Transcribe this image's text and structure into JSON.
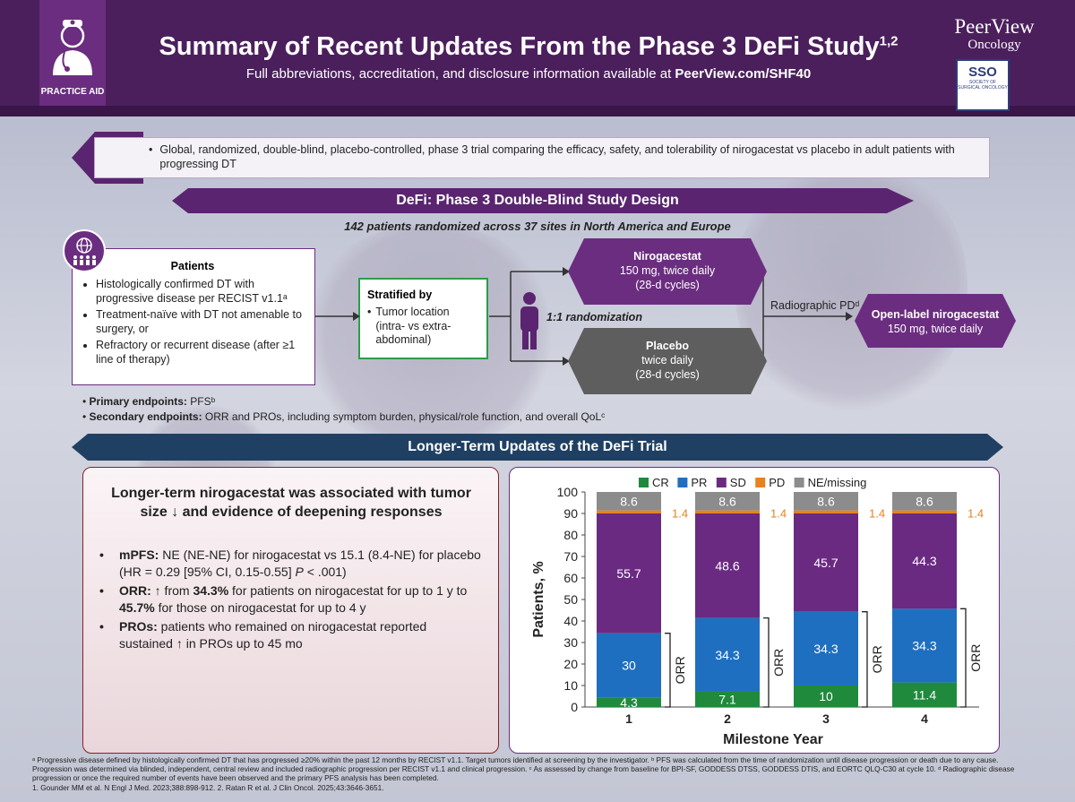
{
  "header": {
    "badge": "PRACTICE AID",
    "title": "Summary of Recent Updates From the Phase 3 DeFi Study",
    "title_sup": "1,2",
    "subtitle_pre": "Full abbreviations, accreditation, and disclosure information available at ",
    "subtitle_link": "PeerView.com/SHF40",
    "brand1": "PeerView",
    "brand2": "Oncology",
    "sso_big": "SSO",
    "sso_small": "SOCIETY OF SURGICAL ONCOLOGY"
  },
  "intro": "Global, randomized, double-blind, placebo-controlled, phase 3 trial comparing the efficacy, safety, and tolerability of nirogacestat vs placebo in adult patients with progressing DT",
  "design": {
    "title": "DeFi: Phase 3 Double-Blind Study Design",
    "randomized": "142 patients randomized across 37 sites in North America and Europe",
    "patients_title": "Patients",
    "patients_items": [
      "Histologically confirmed DT with progressive disease per RECIST v1.1ᵃ",
      "Treatment-naïve with DT not amenable to surgery, or",
      "Refractory or recurrent disease (after ≥1 line of therapy)"
    ],
    "strat_title": "Stratified by",
    "strat_item": "Tumor location (intra- vs extra-abdominal)",
    "randomization": "1:1 randomization",
    "niro_name": "Nirogacestat",
    "niro_dose": "150 mg, twice daily",
    "niro_cycle": "(28-d cycles)",
    "placebo_name": "Placebo",
    "placebo_dose": "twice daily",
    "placebo_cycle": "(28-d cycles)",
    "pd_label": "Radiographic PDᵈ",
    "ol_name": "Open-label nirogacestat",
    "ol_dose": "150 mg, twice daily",
    "primary_label": "Primary endpoints:",
    "primary_value": " PFSᵇ",
    "secondary_label": "Secondary endpoints:",
    "secondary_value": " ORR and PROs, including symptom burden, physical/role function, and overall QoLᶜ"
  },
  "updates": {
    "title": "Longer-Term Updates of the DeFi Trial",
    "headline": "Longer-term nirogacestat was associated with tumor size ↓ and evidence of deepening responses",
    "b1_label": "mPFS:",
    "b1_text": " NE (NE-NE) for nirogacestat vs 15.1 (8.4-NE) for placebo (HR = 0.29 [95% CI, 0.15-0.55] ",
    "b1_p": "P",
    "b1_end": " < .001)",
    "b2_label": "ORR:",
    "b2_a": " ↑ from ",
    "b2_v1": "34.3%",
    "b2_b": " for patients on nirogacestat for up to 1 y to ",
    "b2_v2": "45.7%",
    "b2_c": " for those on nirogacestat for up to 4 y",
    "b3_label": "PROs:",
    "b3_text": " patients who remained on nirogacestat reported sustained ↑ in PROs up to 45 mo"
  },
  "chart_data": {
    "type": "bar",
    "stacked": true,
    "categories": [
      "1",
      "2",
      "3",
      "4"
    ],
    "series": [
      {
        "name": "CR",
        "color": "#1f8a3c",
        "values": [
          4.3,
          7.1,
          10,
          11.4
        ]
      },
      {
        "name": "PR",
        "color": "#1f6fc0",
        "values": [
          30,
          34.3,
          34.3,
          34.3
        ]
      },
      {
        "name": "SD",
        "color": "#6a2a82",
        "values": [
          55.7,
          48.6,
          45.7,
          44.3
        ]
      },
      {
        "name": "PD",
        "color": "#e8821e",
        "values": [
          1.4,
          1.4,
          1.4,
          1.4
        ]
      },
      {
        "name": "NE/missing",
        "color": "#8c8c8c",
        "values": [
          8.6,
          8.6,
          8.6,
          8.6
        ]
      }
    ],
    "xlabel": "Milestone Year",
    "ylabel": "Patients, %",
    "ylim": [
      0,
      100
    ],
    "yticks": [
      "0",
      "10",
      "20",
      "30",
      "40",
      "50",
      "60",
      "70",
      "80",
      "90",
      "100"
    ],
    "bracket_label": "ORR"
  },
  "footnotes": [
    "ᵃ Progressive disease defined by histologically confirmed DT that has progressed ≥20% within the past 12 months by RECIST v1.1. Target tumors identified at screening by the investigator. ᵇ PFS was calculated from the time of randomization until disease progression or death due to any cause.",
    "Progression was determined via blinded, independent, central review and included radiographic progression per RECIST v1.1 and clinical progression. ᶜ As assessed by change from baseline for BPI-SF, GODDESS DTSS, GODDESS DTIS, and EORTC QLQ-C30 at cycle 10. ᵈ Radiographic disease",
    "progression or once the required number of events have been observed and the primary PFS analysis has been completed.",
    "1. Gounder MM et al. N Engl J Med. 2023;388:898-912. 2. Ratan R et al. J Clin Oncol. 2025;43:3646-3651."
  ]
}
